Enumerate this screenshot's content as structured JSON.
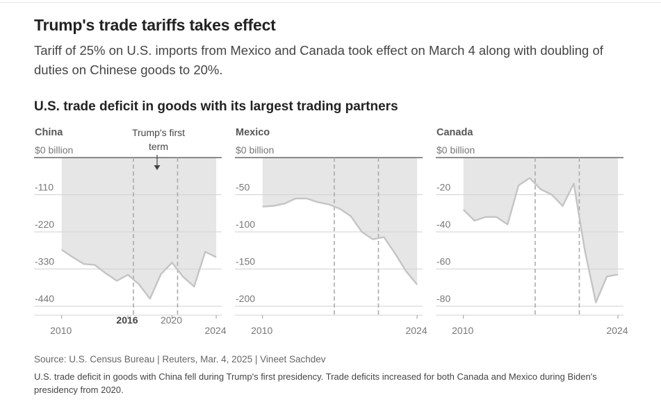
{
  "headline": "Trump's trade tariffs takes effect",
  "dek": "Tariff of 25% on U.S. imports from Mexico and Canada took effect on March 4 along with doubling of duties on Chinese goods to 20%.",
  "chart_title": "U.S. trade deficit in goods with its largest trading partners",
  "annotation": {
    "line1": "Trump's first",
    "line2": "term"
  },
  "source": "Source: U.S. Census Bureau | Reuters, Mar. 4, 2025 | Vineet Sachdev",
  "note": "U.S. trade deficit in goods with China fell during Trump's first presidency. Trade deficits increased for both Canada and Mexico during Biden's presidency from 2020.",
  "colors": {
    "area": "#e6e6e6",
    "line": "#c4c4c4",
    "axis": "#666666",
    "grid": "#d2d2d2",
    "term": "#aaaaaa"
  },
  "chart_data": [
    {
      "type": "area",
      "title": "China",
      "unit_label": "$0 billion",
      "xlim": [
        2007.5,
        2024.5
      ],
      "ylim": [
        -450,
        0
      ],
      "yticks": [
        0,
        -110,
        -220,
        -330,
        -440
      ],
      "ytick_labels": [
        "$0 billion",
        "-110",
        "-220",
        "-330",
        "-440"
      ],
      "xticks": [
        2010,
        2016,
        2020,
        2024
      ],
      "xtick_labels": [
        "2010",
        "2016",
        "2020",
        "2024"
      ],
      "bold_xticks": [
        "2016"
      ],
      "term_lines": [
        2016.5,
        2020.5
      ],
      "x": [
        2010,
        2011,
        2012,
        2013,
        2014,
        2015,
        2016,
        2017,
        2018,
        2019,
        2020,
        2021,
        2022,
        2023,
        2024
      ],
      "values": [
        -273,
        -295,
        -315,
        -318,
        -343,
        -365,
        -347,
        -375,
        -418,
        -345,
        -311,
        -353,
        -382,
        -279,
        -295
      ]
    },
    {
      "type": "area",
      "title": "Mexico",
      "unit_label": "$0 billion",
      "xlim": [
        2007.5,
        2024.5
      ],
      "ylim": [
        -205,
        0
      ],
      "yticks": [
        0,
        -50,
        -100,
        -150,
        -200
      ],
      "ytick_labels": [
        "$0 billion",
        "-50",
        "-100",
        "-150",
        "-200"
      ],
      "xticks": [
        2010,
        2024
      ],
      "xtick_labels": [
        "2010",
        "2024"
      ],
      "bold_xticks": [],
      "term_lines": [
        2016.5,
        2020.5
      ],
      "x": [
        2010,
        2011,
        2012,
        2013,
        2014,
        2015,
        2016,
        2017,
        2018,
        2019,
        2020,
        2021,
        2022,
        2023,
        2024
      ],
      "values": [
        -66,
        -65,
        -62,
        -55,
        -55,
        -60,
        -63,
        -69,
        -79,
        -100,
        -110,
        -107,
        -129,
        -153,
        -171
      ]
    },
    {
      "type": "area",
      "title": "Canada",
      "unit_label": "$0 billion",
      "xlim": [
        2007.5,
        2024.5
      ],
      "ylim": [
        -82,
        0
      ],
      "yticks": [
        0,
        -20,
        -40,
        -60,
        -80
      ],
      "ytick_labels": [
        "$0 billion",
        "-20",
        "-40",
        "-60",
        "-80"
      ],
      "xticks": [
        2010,
        2024
      ],
      "xtick_labels": [
        "2010",
        "2024"
      ],
      "bold_xticks": [],
      "term_lines": [
        2016.5,
        2020.5
      ],
      "x": [
        2010,
        2011,
        2012,
        2013,
        2014,
        2015,
        2016,
        2017,
        2018,
        2019,
        2020,
        2021,
        2022,
        2023,
        2024
      ],
      "values": [
        -28,
        -34,
        -32,
        -32,
        -36,
        -15,
        -11,
        -17,
        -20,
        -26,
        -14,
        -50,
        -78,
        -64,
        -63
      ]
    }
  ]
}
